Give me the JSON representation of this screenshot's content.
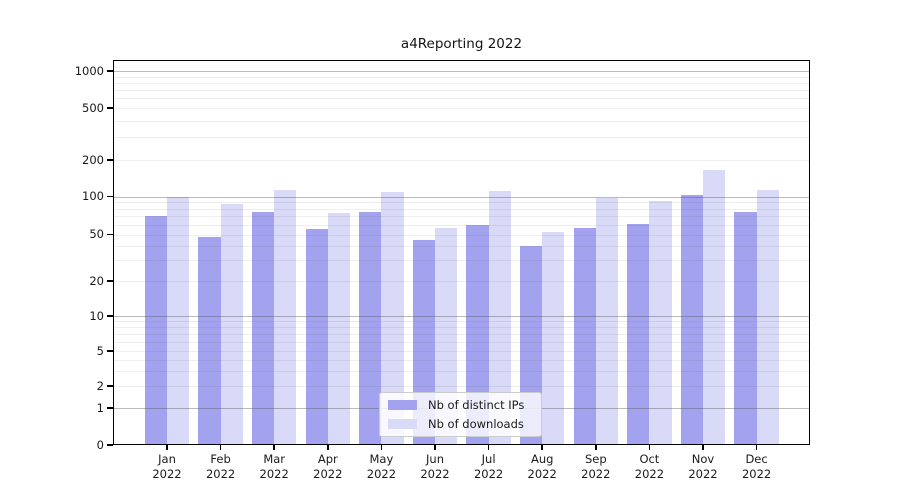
{
  "chart_data": {
    "type": "bar",
    "title": "a4Reporting 2022",
    "categories": [
      "Jan",
      "Feb",
      "Mar",
      "Apr",
      "May",
      "Jun",
      "Jul",
      "Aug",
      "Sep",
      "Oct",
      "Nov",
      "Dec"
    ],
    "year_label": "2022",
    "series": [
      {
        "name": "Nb of distinct IPs",
        "color": "#a2a2ef",
        "values": [
          70,
          48,
          75,
          55,
          76,
          45,
          60,
          40,
          56,
          61,
          103,
          75
        ]
      },
      {
        "name": "Nb of downloads",
        "color": "#d9d9f8",
        "values": [
          100,
          88,
          113,
          74,
          108,
          56,
          110,
          52,
          98,
          92,
          165,
          113
        ]
      }
    ],
    "xlabel": "",
    "ylabel": "",
    "y_scale": "asinh-log",
    "y_ticks": [
      0,
      1,
      2,
      5,
      10,
      20,
      50,
      100,
      200,
      500,
      1000
    ],
    "ylim": [
      0,
      1400
    ],
    "grid": {
      "major_lines": [
        1,
        10,
        100,
        1000
      ],
      "minor_multipliers": [
        2,
        3,
        4,
        5,
        6,
        7,
        8,
        9
      ],
      "minor_decades": [
        1,
        10,
        100
      ]
    },
    "legend_position": "lower center",
    "colors": {
      "major_grid": "rgba(85,85,85,0.40)",
      "minor_grid": "rgba(85,85,85,0.10)",
      "spine": "#000000",
      "text": "#1a1a1a",
      "legend_bg": "rgba(255,255,255,0.8)",
      "legend_border": "#cccccc"
    }
  }
}
